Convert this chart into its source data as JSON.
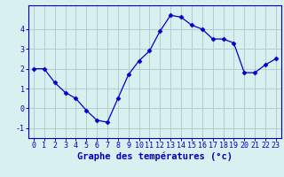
{
  "hours": [
    0,
    1,
    2,
    3,
    4,
    5,
    6,
    7,
    8,
    9,
    10,
    11,
    12,
    13,
    14,
    15,
    16,
    17,
    18,
    19,
    20,
    21,
    22,
    23
  ],
  "temps": [
    2.0,
    2.0,
    1.3,
    0.8,
    0.5,
    -0.1,
    -0.6,
    -0.7,
    0.5,
    1.7,
    2.4,
    2.9,
    3.9,
    4.7,
    4.6,
    4.2,
    4.0,
    3.5,
    3.5,
    3.3,
    1.8,
    1.8,
    2.2,
    2.5
  ],
  "line_color": "#0000cc",
  "marker": "D",
  "marker_size": 2.5,
  "bg_color": "#d8f0f0",
  "grid_color": "#b0cece",
  "axis_color": "#0000bb",
  "xlabel": "Graphe des températures (°c)",
  "xlabel_fontsize": 7.5,
  "tick_fontsize": 6.0,
  "ylim": [
    -1.5,
    5.2
  ],
  "yticks": [
    -1,
    0,
    1,
    2,
    3,
    4
  ],
  "xlim": [
    -0.5,
    23.5
  ],
  "xtick_labels": [
    "0",
    "1",
    "2",
    "3",
    "4",
    "5",
    "6",
    "7",
    "8",
    "9",
    "10",
    "11",
    "12",
    "13",
    "14",
    "15",
    "16",
    "17",
    "18",
    "19",
    "20",
    "21",
    "22",
    "23"
  ]
}
